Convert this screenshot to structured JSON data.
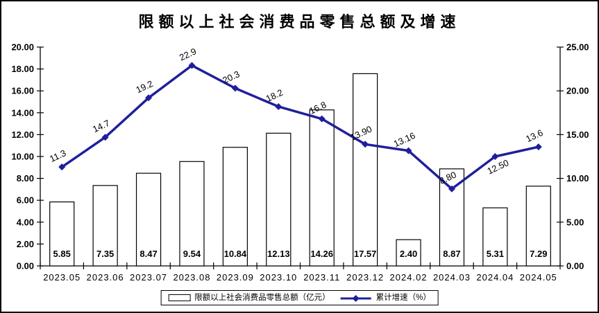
{
  "chart_data": {
    "type": "combo",
    "title": "限额以上社会消费品零售总额及增速",
    "categories": [
      "2023.05",
      "2023.06",
      "2023.07",
      "2023.08",
      "2023.09",
      "2023.10",
      "2023.11",
      "2023.12",
      "2024.02",
      "2024.03",
      "2024.04",
      "2024.05"
    ],
    "series": [
      {
        "name": "限额以上社会消费品零售总额（亿元）",
        "type": "bar",
        "axis": "left",
        "values": [
          5.85,
          7.35,
          8.47,
          9.54,
          10.84,
          12.13,
          14.26,
          17.57,
          2.4,
          8.87,
          5.31,
          7.29
        ],
        "labels": [
          "5.85",
          "7.35",
          "8.47",
          "9.54",
          "10.84",
          "12.13",
          "14.26",
          "17.57",
          "2.40",
          "8.87",
          "5.31",
          "7.29"
        ],
        "fill": "#ffffff",
        "stroke": "#000000"
      },
      {
        "name": "累计增速（%）",
        "type": "line",
        "axis": "right",
        "values": [
          11.3,
          14.7,
          19.2,
          22.9,
          20.3,
          18.2,
          16.8,
          13.9,
          13.16,
          8.8,
          12.5,
          13.6
        ],
        "labels": [
          "11.3",
          "14.7",
          "19.2",
          "22.9",
          "20.3",
          "18.2",
          "16.8",
          "13.90",
          "13.16",
          "8.80",
          "12.50",
          "13.6"
        ],
        "color": "#1f1f9c",
        "marker": "diamond"
      }
    ],
    "left_axis": {
      "min": 0,
      "max": 20,
      "step": 2,
      "ticks": [
        "0.00",
        "2.00",
        "4.00",
        "6.00",
        "8.00",
        "10.00",
        "12.00",
        "14.00",
        "16.00",
        "18.00",
        "20.00"
      ]
    },
    "right_axis": {
      "min": 0,
      "max": 25,
      "step": 5,
      "ticks": [
        "0.00",
        "5.00",
        "10.00",
        "15.00",
        "20.00",
        "25.00"
      ]
    },
    "grid": false,
    "legend_position": "bottom",
    "text_color": "#000000"
  }
}
